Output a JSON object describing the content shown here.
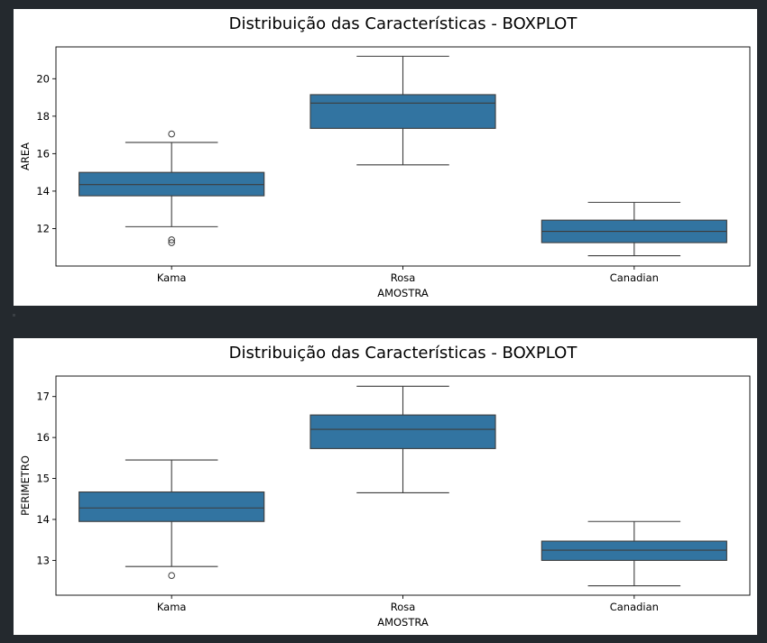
{
  "colors": {
    "box_fill": "#3274a1",
    "line": "#3d3d3d",
    "background": "#24292e"
  },
  "chart_data": [
    {
      "type": "boxplot",
      "title": "Distribuição das Características - BOXPLOT",
      "xlabel": "AMOSTRA",
      "ylabel": "AREA",
      "ylim": [
        10.0,
        21.7
      ],
      "yticks": [
        12,
        14,
        16,
        18,
        20
      ],
      "categories": [
        "Kama",
        "Rosa",
        "Canadian"
      ],
      "boxes": [
        {
          "whisker_low": 12.1,
          "q1": 13.75,
          "median": 14.35,
          "q3": 15.0,
          "whisker_high": 16.6,
          "outliers": [
            17.05,
            11.4,
            11.25
          ]
        },
        {
          "whisker_low": 15.4,
          "q1": 17.35,
          "median": 18.7,
          "q3": 19.15,
          "whisker_high": 21.2,
          "outliers": []
        },
        {
          "whisker_low": 10.55,
          "q1": 11.25,
          "median": 11.85,
          "q3": 12.45,
          "whisker_high": 13.4,
          "outliers": []
        }
      ]
    },
    {
      "type": "boxplot",
      "title": "Distribuição das Características - BOXPLOT",
      "xlabel": "AMOSTRA",
      "ylabel": "PERIMETRO",
      "ylim": [
        12.15,
        17.5
      ],
      "yticks": [
        13,
        14,
        15,
        16,
        17
      ],
      "categories": [
        "Kama",
        "Rosa",
        "Canadian"
      ],
      "boxes": [
        {
          "whisker_low": 12.85,
          "q1": 13.95,
          "median": 14.28,
          "q3": 14.67,
          "whisker_high": 15.45,
          "outliers": [
            12.63
          ]
        },
        {
          "whisker_low": 14.65,
          "q1": 15.73,
          "median": 16.2,
          "q3": 16.55,
          "whisker_high": 17.25,
          "outliers": []
        },
        {
          "whisker_low": 12.38,
          "q1": 13.0,
          "median": 13.25,
          "q3": 13.47,
          "whisker_high": 13.95,
          "outliers": []
        }
      ]
    }
  ]
}
